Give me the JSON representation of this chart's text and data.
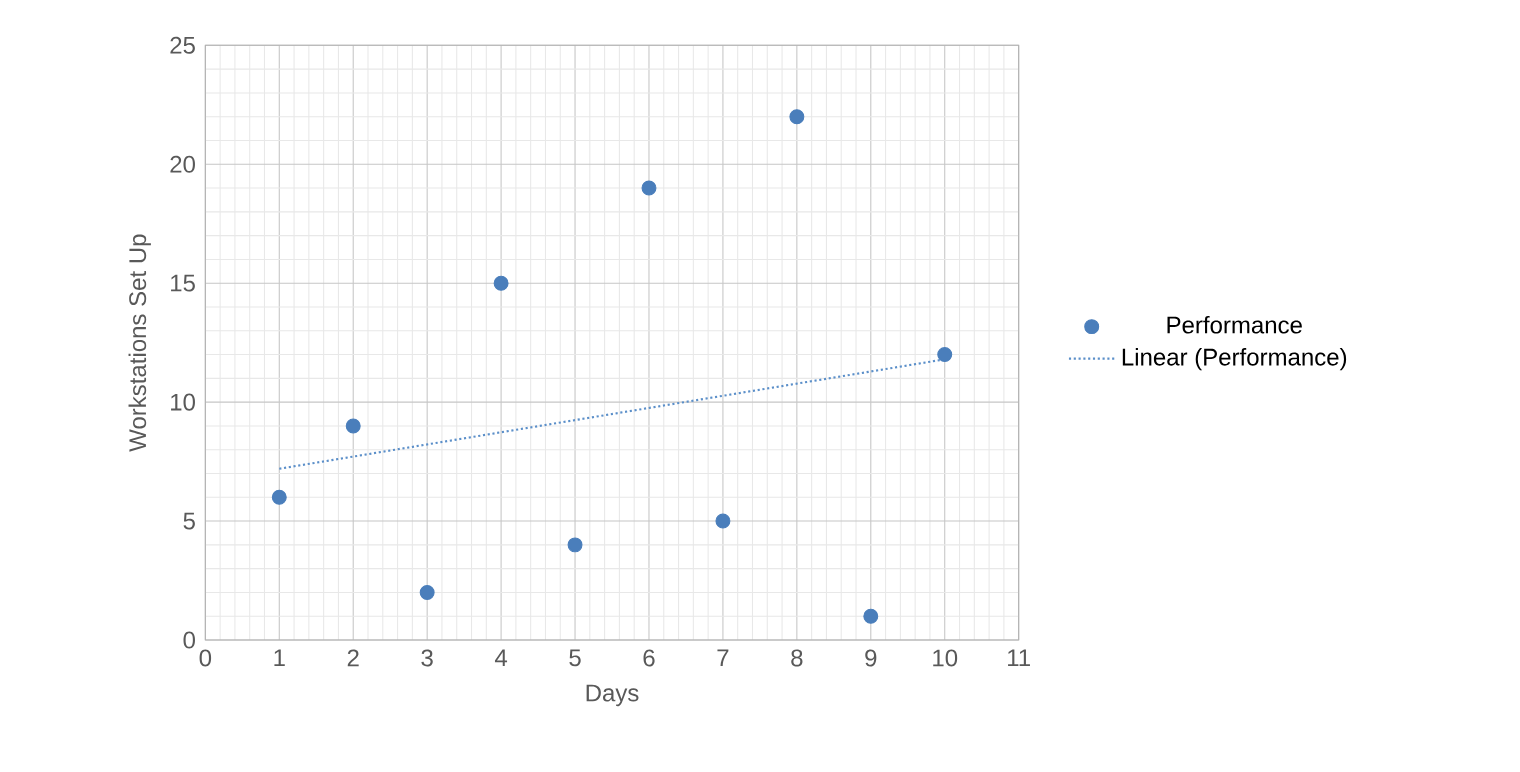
{
  "chart_data": {
    "type": "scatter",
    "xlabel": "Days",
    "ylabel": "Workstations Set Up",
    "xlim": [
      0,
      11
    ],
    "ylim": [
      0,
      25
    ],
    "xticks": [
      0,
      1,
      2,
      3,
      4,
      5,
      6,
      7,
      8,
      9,
      10,
      11
    ],
    "yticks": [
      0,
      5,
      10,
      15,
      20,
      25
    ],
    "grid": true,
    "legend": "right",
    "series": [
      {
        "name": "Performance",
        "color": "#4a7ebb",
        "marker": "circle",
        "x": [
          1,
          2,
          3,
          4,
          5,
          6,
          7,
          8,
          9,
          10
        ],
        "values": [
          6,
          9,
          2,
          15,
          4,
          19,
          5,
          22,
          1,
          12
        ]
      },
      {
        "name": "Linear (Performance)",
        "type": "line",
        "color": "#5b8fc9",
        "line_style": "dotted",
        "marker": "none",
        "x": [
          1,
          10
        ],
        "values": [
          7.2,
          11.8
        ]
      }
    ]
  }
}
